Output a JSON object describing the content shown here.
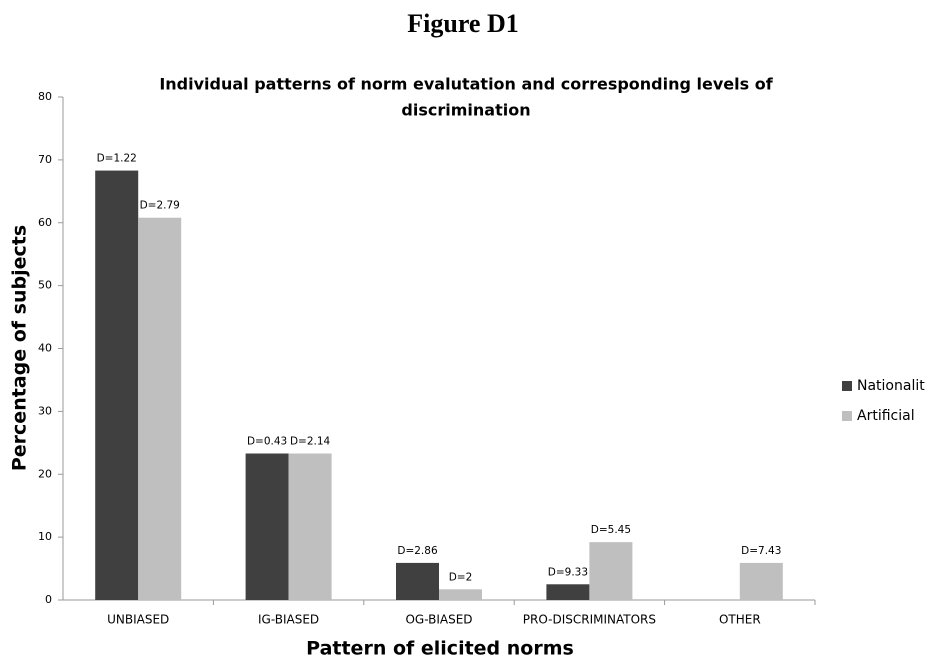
{
  "figure_label": "Figure D1",
  "chart_data": {
    "type": "bar",
    "title": [
      "Individual patterns of norm evalutation and corresponding levels of",
      "discrimination"
    ],
    "x_label": "Pattern of elicited norms",
    "y_label": "Percentage of subjects",
    "categories": [
      "UNBIASED",
      "IG-BIASED",
      "OG-BIASED",
      "PRO-DISCRIMINATORS",
      "OTHER"
    ],
    "series": [
      {
        "name": "Nationality",
        "color": "#404040",
        "values": [
          68.3,
          23.3,
          5.9,
          2.5,
          0
        ],
        "labels": [
          "D=1.22",
          "D=0.43",
          "D=2.86",
          "D=9.33",
          null
        ]
      },
      {
        "name": "Artificial",
        "color": "#bfbfbf",
        "values": [
          60.8,
          23.3,
          1.7,
          9.2,
          5.9
        ],
        "labels": [
          "D=2.79",
          "D=2.14",
          "D=2",
          "D=5.45",
          "D=7.43"
        ]
      }
    ],
    "ylim": [
      0,
      80
    ],
    "yticks": [
      0,
      10,
      20,
      30,
      40,
      50,
      60,
      70,
      80
    ],
    "legend": "right"
  }
}
